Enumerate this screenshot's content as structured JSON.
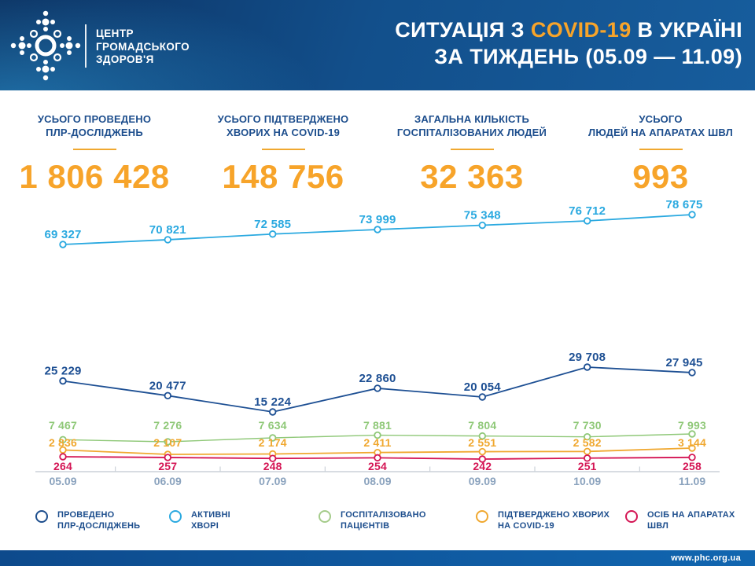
{
  "header": {
    "logo_line1": "ЦЕНТР",
    "logo_line2": "ГРОМАДСЬКОГО",
    "logo_line3": "ЗДОРОВ'Я",
    "title_line1_prefix": "СИТУАЦІЯ З ",
    "title_line1_highlight": "COVID-19",
    "title_line1_suffix": " В УКРАЇНІ",
    "title_line2": "ЗА ТИЖДЕНЬ (05.09 — 11.09)"
  },
  "stats": [
    {
      "label_line1": "УСЬОГО ПРОВЕДЕНО",
      "label_line2": "ПЛР-ДОСЛІДЖЕНЬ",
      "value": "1 806 428"
    },
    {
      "label_line1": "УСЬОГО ПІДТВЕРДЖЕНО",
      "label_line2": "ХВОРИХ НА COVID-19",
      "value": "148 756"
    },
    {
      "label_line1": "ЗАГАЛЬНА КІЛЬКІСТЬ",
      "label_line2": "ГОСПІТАЛІЗОВАНИХ ЛЮДЕЙ",
      "value": "32 363"
    },
    {
      "label_line1": "УСЬОГО",
      "label_line2": "ЛЮДЕЙ НА АПАРАТАХ ШВЛ",
      "value": "993"
    }
  ],
  "chart_data": {
    "type": "line",
    "title": "СИТУАЦІЯ З COVID-19 В УКРАЇНІ ЗА ТИЖДЕНЬ (05.09 — 11.09)",
    "x": [
      "05.09",
      "06.09",
      "07.09",
      "08.09",
      "09.09",
      "10.09",
      "11.09"
    ],
    "series": [
      {
        "name": "АКТИВНІ ХВОРІ",
        "color": "#2aa9e0",
        "values": [
          69327,
          70821,
          72585,
          73999,
          75348,
          76712,
          78675
        ]
      },
      {
        "name": "ПРОВЕДЕНО ПЛР-ДОСЛІДЖЕНЬ",
        "color": "#1d4f93",
        "values": [
          25229,
          20477,
          15224,
          22860,
          20054,
          29708,
          27945
        ]
      },
      {
        "name": "ГОСПІТАЛІЗОВАНО ПАЦІЄНТІВ",
        "color": "#8fc878",
        "values": [
          7467,
          7276,
          7634,
          7881,
          7804,
          7730,
          7993
        ]
      },
      {
        "name": "ПІДТВЕРДЖЕНО ХВОРИХ НА COVID-19",
        "color": "#f0a830",
        "values": [
          2836,
          2107,
          2174,
          2411,
          2551,
          2582,
          3144
        ]
      },
      {
        "name": "ОСІБ НА АПАРАТАХ ШВЛ",
        "color": "#d41554",
        "values": [
          264,
          257,
          248,
          254,
          242,
          251,
          258
        ]
      }
    ],
    "grid": false,
    "legend_position": "bottom",
    "data_labels": true
  },
  "legend": [
    {
      "label_line1": "ПРОВЕДЕНО",
      "label_line2": "ПЛР-ДОСЛІДЖЕНЬ",
      "color": "#1d4e8d"
    },
    {
      "label_line1": "АКТИВНІ",
      "label_line2": "ХВОРІ",
      "color": "#2aa9e0"
    },
    {
      "label_line1": "ГОСПІТАЛІЗОВАНО",
      "label_line2": "ПАЦІЄНТІВ",
      "color": "#a5cc8b"
    },
    {
      "label_line1": "ПІДТВЕРДЖЕНО ХВОРИХ",
      "label_line2": "НА COVID-19",
      "color": "#f0a830"
    },
    {
      "label_line1": "ОСІБ НА АПАРАТАХ",
      "label_line2": "ШВЛ",
      "color": "#d41554"
    }
  ],
  "footer": {
    "url": "www.phc.org.ua"
  },
  "colors": {
    "header_blue_dark": "#0c3161",
    "header_blue_light": "#175d9d",
    "accent_orange": "#f7a42a",
    "navy_text": "#1d4e8d",
    "axis_gray": "#cbd1d8",
    "date_gray_blue": "#8ba3be"
  }
}
